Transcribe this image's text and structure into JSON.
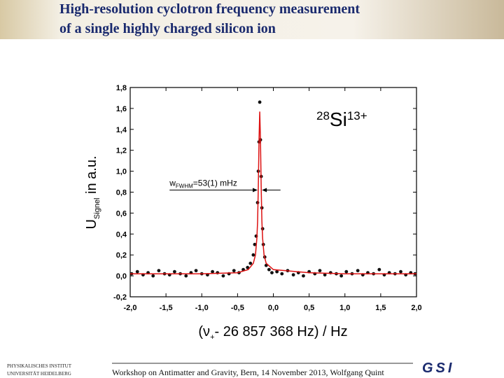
{
  "header": {
    "title": [
      "High-resolution cyclotron frequency measurement",
      "of a single highly charged silicon ion"
    ]
  },
  "footer": {
    "institute": [
      "PHYSIKALISCHES INSTITUT",
      "UNIVERSITÄT HEIDELBERG"
    ],
    "text": "Workshop on Antimatter and Gravity, Bern, 14 November 2013,  Wolfgang Quint",
    "logo": "GSI"
  },
  "chart_data": {
    "type": "scatter",
    "ylabel": {
      "main": "U",
      "sub": "Signel",
      "rest": " in a.u."
    },
    "xlabel": {
      "main": "(ν",
      "sub": "+",
      "rest": "- 26 857 368 Hz) / Hz"
    },
    "annotation": {
      "main": "w",
      "sub": "FWHM",
      "rest": "=53(1) mHz",
      "x": -1.45,
      "y": 0.82
    },
    "ion": {
      "mass": "28",
      "symbol": "Si",
      "charge": "13+"
    },
    "xlim": [
      -2.0,
      2.0
    ],
    "ylim": [
      -0.2,
      1.8
    ],
    "xticks": [
      {
        "value": -2.0,
        "label": "-2,0"
      },
      {
        "value": -1.5,
        "label": "-1,5"
      },
      {
        "value": -1.0,
        "label": "-1,0"
      },
      {
        "value": -0.5,
        "label": "-0,5"
      },
      {
        "value": 0,
        "label": "0,0"
      },
      {
        "value": 0.5,
        "label": "0,5"
      },
      {
        "value": 1.0,
        "label": "1,0"
      },
      {
        "value": 1.5,
        "label": "1,5"
      },
      {
        "value": 2.0,
        "label": "2,0"
      }
    ],
    "yticks": [
      {
        "value": -0.2,
        "label": "-0,2"
      },
      {
        "value": 0,
        "label": "0,0"
      },
      {
        "value": 0.2,
        "label": "0,2"
      },
      {
        "value": 0.4,
        "label": "0,4"
      },
      {
        "value": 0.6,
        "label": "0,6"
      },
      {
        "value": 0.8,
        "label": "0,8"
      },
      {
        "value": 1.0,
        "label": "1,0"
      },
      {
        "value": 1.2,
        "label": "1,2"
      },
      {
        "value": 1.4,
        "label": "1,4"
      },
      {
        "value": 1.6,
        "label": "1,6"
      },
      {
        "value": 1.8,
        "label": "1,8"
      }
    ],
    "series": [
      {
        "type": "scatter",
        "color": "#111111",
        "x": [
          -1.98,
          -1.9,
          -1.82,
          -1.75,
          -1.68,
          -1.6,
          -1.52,
          -1.45,
          -1.38,
          -1.3,
          -1.22,
          -1.15,
          -1.08,
          -1.0,
          -0.92,
          -0.85,
          -0.78,
          -0.7,
          -0.62,
          -0.55,
          -0.48,
          -0.42,
          -0.36,
          -0.32,
          -0.28,
          -0.26,
          -0.24,
          -0.22,
          -0.21,
          -0.2,
          -0.19,
          -0.18,
          -0.17,
          -0.16,
          -0.15,
          -0.14,
          -0.12,
          -0.1,
          -0.06,
          -0.02,
          0.05,
          0.12,
          0.2,
          0.28,
          0.35,
          0.42,
          0.5,
          0.58,
          0.65,
          0.72,
          0.8,
          0.88,
          0.95,
          1.02,
          1.1,
          1.18,
          1.25,
          1.32,
          1.4,
          1.48,
          1.55,
          1.62,
          1.7,
          1.78,
          1.85,
          1.92,
          1.98
        ],
        "values": [
          0.02,
          0.04,
          0.01,
          0.03,
          0.0,
          0.05,
          0.02,
          0.01,
          0.04,
          0.02,
          0.0,
          0.03,
          0.05,
          0.02,
          0.01,
          0.04,
          0.03,
          0.0,
          0.02,
          0.05,
          0.03,
          0.06,
          0.08,
          0.12,
          0.2,
          0.3,
          0.38,
          0.7,
          1.0,
          1.28,
          1.66,
          1.3,
          0.95,
          0.65,
          0.45,
          0.3,
          0.18,
          0.1,
          0.06,
          0.03,
          0.04,
          0.02,
          0.05,
          0.01,
          0.03,
          0.0,
          0.04,
          0.02,
          0.05,
          0.01,
          0.03,
          0.02,
          0.0,
          0.04,
          0.02,
          0.05,
          0.01,
          0.03,
          0.02,
          0.06,
          0.01,
          0.03,
          0.02,
          0.04,
          0.01,
          0.03,
          0.02
        ]
      },
      {
        "type": "line",
        "color": "#dd1111",
        "x": [
          -2.0,
          -1.0,
          -0.5,
          -0.35,
          -0.28,
          -0.25,
          -0.23,
          -0.22,
          -0.21,
          -0.2,
          -0.19,
          -0.18,
          -0.17,
          -0.16,
          -0.15,
          -0.13,
          -0.1,
          0,
          0.5,
          1.0,
          2.0
        ],
        "values": [
          0.02,
          0.02,
          0.03,
          0.06,
          0.12,
          0.2,
          0.36,
          0.52,
          0.85,
          1.3,
          1.57,
          1.3,
          0.85,
          0.52,
          0.36,
          0.2,
          0.12,
          0.06,
          0.03,
          0.02,
          0.02
        ]
      }
    ]
  }
}
